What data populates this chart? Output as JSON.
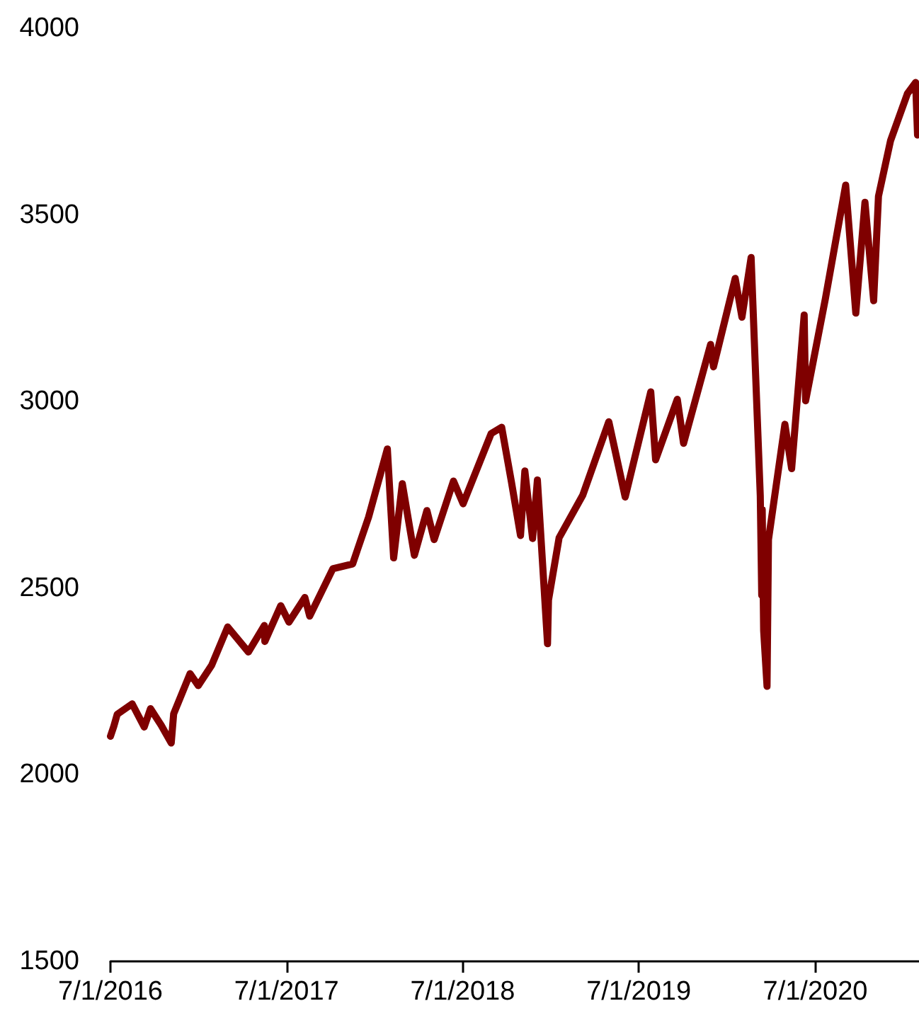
{
  "chart_data": {
    "type": "line",
    "x": [
      "2016-07-01",
      "2016-07-08",
      "2016-07-15",
      "2016-08-15",
      "2016-09-09",
      "2016-09-22",
      "2016-10-14",
      "2016-11-04",
      "2016-11-09",
      "2016-12-13",
      "2016-12-30",
      "2017-01-27",
      "2017-03-01",
      "2017-04-13",
      "2017-05-16",
      "2017-05-17",
      "2017-06-19",
      "2017-07-06",
      "2017-08-08",
      "2017-08-18",
      "2017-10-05",
      "2017-11-15",
      "2017-12-18",
      "2018-01-26",
      "2018-02-08",
      "2018-02-26",
      "2018-03-23",
      "2018-04-18",
      "2018-05-03",
      "2018-06-12",
      "2018-07-02",
      "2018-08-29",
      "2018-09-20",
      "2018-10-10",
      "2018-10-29",
      "2018-11-07",
      "2018-11-23",
      "2018-12-03",
      "2018-12-24",
      "2018-12-26",
      "2019-01-17",
      "2019-03-07",
      "2019-04-30",
      "2019-06-03",
      "2019-07-26",
      "2019-08-05",
      "2019-09-19",
      "2019-10-02",
      "2019-11-27",
      "2019-12-03",
      "2020-01-17",
      "2020-01-31",
      "2020-02-19",
      "2020-03-09",
      "2020-03-12",
      "2020-03-13",
      "2020-03-16",
      "2020-03-23",
      "2020-03-26",
      "2020-04-29",
      "2020-05-13",
      "2020-06-08",
      "2020-06-11",
      "2020-07-22",
      "2020-09-02",
      "2020-09-23",
      "2020-10-12",
      "2020-10-30",
      "2020-11-09",
      "2020-12-04",
      "2021-01-08",
      "2021-01-25",
      "2021-01-29"
    ],
    "series": [
      {
        "color": "#7f0000",
        "values": [
          2103,
          2130,
          2162,
          2190,
          2128,
          2177,
          2133,
          2085,
          2163,
          2271,
          2239,
          2294,
          2396,
          2329,
          2400,
          2357,
          2453,
          2409,
          2475,
          2425,
          2552,
          2565,
          2690,
          2873,
          2581,
          2780,
          2588,
          2708,
          2630,
          2787,
          2726,
          2914,
          2931,
          2786,
          2641,
          2814,
          2633,
          2790,
          2351,
          2468,
          2635,
          2749,
          2946,
          2744,
          3026,
          2844,
          3006,
          2888,
          3153,
          3093,
          3330,
          3226,
          3386,
          2747,
          2481,
          2711,
          2386,
          2237,
          2630,
          2939,
          2820,
          3232,
          3002,
          3276,
          3580,
          3237,
          3534,
          3270,
          3550,
          3699,
          3825,
          3855,
          3714
        ]
      }
    ],
    "xlim": [
      "2016-07-01",
      "2021-02-01"
    ],
    "xticks": [
      {
        "value": "2016-07-01",
        "label": "7/1/2016"
      },
      {
        "value": "2017-07-01",
        "label": "7/1/2017"
      },
      {
        "value": "2018-07-01",
        "label": "7/1/2018"
      },
      {
        "value": "2019-07-01",
        "label": "7/1/2019"
      },
      {
        "value": "2020-07-01",
        "label": "7/1/2020"
      }
    ],
    "ylim": [
      1500,
      4000
    ],
    "yticks": [
      1500,
      2000,
      2500,
      3000,
      3500,
      4000
    ],
    "grid": false,
    "marker": "none",
    "line_style": "solid"
  }
}
